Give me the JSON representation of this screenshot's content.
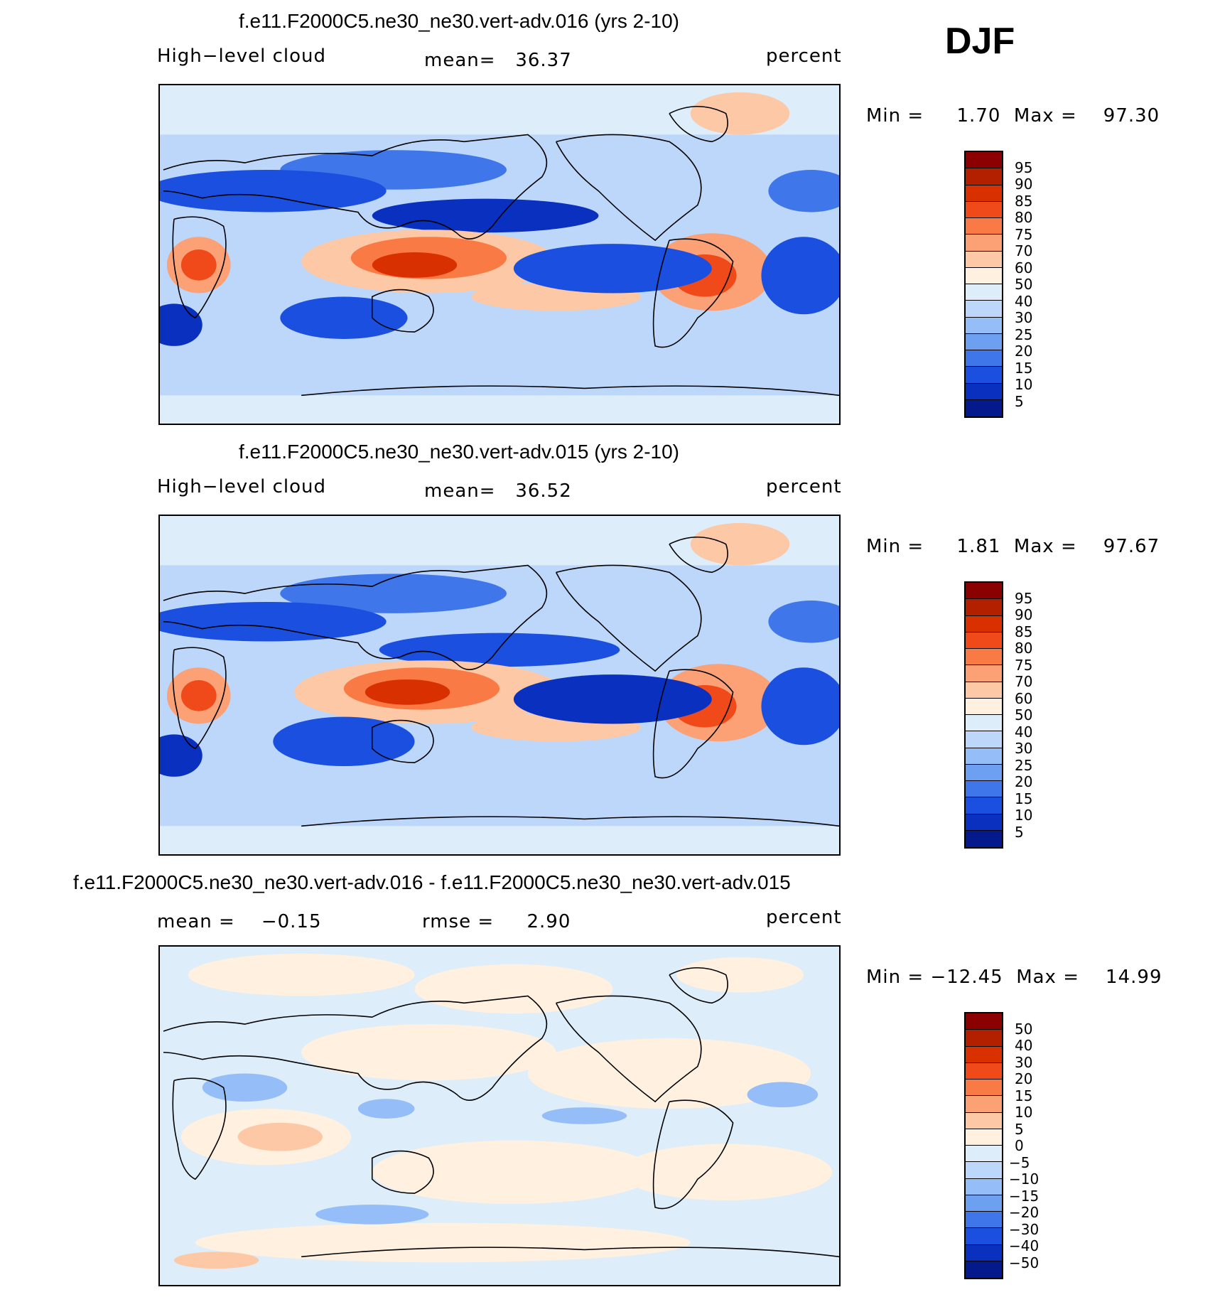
{
  "season": "DJF",
  "panels": [
    {
      "title": "f.e11.F2000C5.ne30_ne30.vert-adv.016 (yrs 2-10)",
      "left": "High−level cloud",
      "center": "mean=   36.37",
      "right": "percent",
      "minmax": "Min =     1.70  Max =    97.30",
      "colorbar": {
        "labels": [
          "95",
          "90",
          "85",
          "80",
          "75",
          "70",
          "60",
          "50",
          "40",
          "30",
          "25",
          "20",
          "15",
          "10",
          "5"
        ],
        "colors": [
          "#8b0000",
          "#b22000",
          "#d93000",
          "#f04a1a",
          "#fa7a45",
          "#fca075",
          "#fdc8a5",
          "#fff0e0",
          "#deedfa",
          "#bcd7fa",
          "#95bef8",
          "#6ea0f2",
          "#3f76ea",
          "#1a4fe0",
          "#0a30c0",
          "#041a8c"
        ]
      }
    },
    {
      "title": "f.e11.F2000C5.ne30_ne30.vert-adv.015 (yrs 2-10)",
      "left": "High−level cloud",
      "center": "mean=   36.52",
      "right": "percent",
      "minmax": "Min =     1.81  Max =    97.67",
      "colorbar": {
        "labels": [
          "95",
          "90",
          "85",
          "80",
          "75",
          "70",
          "60",
          "50",
          "40",
          "30",
          "25",
          "20",
          "15",
          "10",
          "5"
        ],
        "colors": [
          "#8b0000",
          "#b22000",
          "#d93000",
          "#f04a1a",
          "#fa7a45",
          "#fca075",
          "#fdc8a5",
          "#fff0e0",
          "#deedfa",
          "#bcd7fa",
          "#95bef8",
          "#6ea0f2",
          "#3f76ea",
          "#1a4fe0",
          "#0a30c0",
          "#041a8c"
        ]
      }
    },
    {
      "title": "f.e11.F2000C5.ne30_ne30.vert-adv.016 - f.e11.F2000C5.ne30_ne30.vert-adv.015",
      "left": "mean =    −0.15",
      "center": "rmse =     2.90",
      "right": "percent",
      "minmax": "Min = −12.45  Max =    14.99",
      "colorbar": {
        "labels": [
          "50",
          "40",
          "30",
          "20",
          "15",
          "10",
          "5",
          "0",
          "−5",
          "−10",
          "−15",
          "−20",
          "−30",
          "−40",
          "−50"
        ],
        "colors": [
          "#8b0000",
          "#b22000",
          "#d93000",
          "#f04a1a",
          "#fa7a45",
          "#fca075",
          "#fdc8a5",
          "#fff0e0",
          "#deedfa",
          "#bcd7fa",
          "#95bef8",
          "#6ea0f2",
          "#3f76ea",
          "#1a4fe0",
          "#0a30c0",
          "#041a8c"
        ]
      }
    }
  ]
}
